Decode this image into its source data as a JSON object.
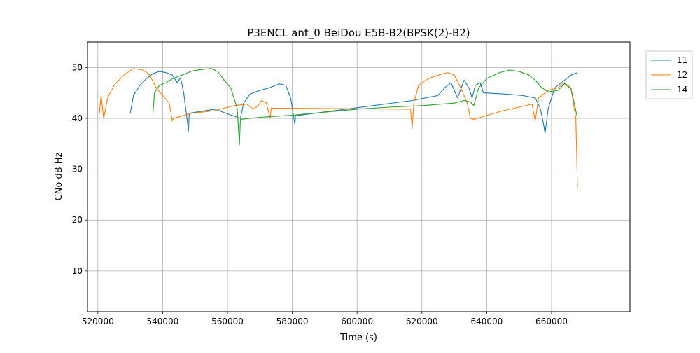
{
  "chart_data": {
    "type": "line",
    "title": "P3ENCL ant_0 BeiDou E5B-B2(BPSK(2)-B2)",
    "xlabel": "Time (s)",
    "ylabel": "CNo dB Hz",
    "xlim": [
      516800,
      684200
    ],
    "ylim": [
      2,
      55
    ],
    "xticks": [
      520000,
      540000,
      560000,
      580000,
      600000,
      620000,
      640000,
      660000
    ],
    "xtick_labels": [
      "520000",
      "540000",
      "560000",
      "580000",
      "600000",
      "620000",
      "640000",
      "660000"
    ],
    "yticks": [
      10,
      20,
      30,
      40,
      50
    ],
    "ytick_labels": [
      "10",
      "20",
      "30",
      "40",
      "50"
    ],
    "grid": true,
    "legend_position": "outside-top-right",
    "series": [
      {
        "name": "11",
        "color": "#1f77b4",
        "points": [
          [
            530000,
            41
          ],
          [
            531000,
            44.5
          ],
          [
            533000,
            46.5
          ],
          [
            535000,
            47.8
          ],
          [
            537000,
            48.8
          ],
          [
            539000,
            49.2
          ],
          [
            541000,
            49
          ],
          [
            543000,
            48.5
          ],
          [
            544500,
            47
          ],
          [
            545500,
            48
          ],
          [
            546500,
            45
          ],
          [
            547500,
            40
          ],
          [
            548000,
            37.5
          ],
          [
            548200,
            41
          ],
          [
            556000,
            41.8
          ],
          [
            564000,
            40
          ],
          [
            565000,
            43
          ],
          [
            567000,
            44.8
          ],
          [
            570000,
            45.5
          ],
          [
            573000,
            46
          ],
          [
            576000,
            46.8
          ],
          [
            578000,
            46.5
          ],
          [
            579500,
            44
          ],
          [
            580500,
            40
          ],
          [
            580800,
            38.8
          ],
          [
            581000,
            40.5
          ],
          [
            617000,
            43.5
          ],
          [
            625000,
            44.5
          ],
          [
            627000,
            46
          ],
          [
            629000,
            47
          ],
          [
            631000,
            44
          ],
          [
            633000,
            47.5
          ],
          [
            634500,
            46
          ],
          [
            635500,
            44
          ],
          [
            636500,
            46.5
          ],
          [
            638000,
            47
          ],
          [
            639000,
            45
          ],
          [
            645000,
            44.8
          ],
          [
            651000,
            44.5
          ],
          [
            655000,
            44
          ],
          [
            656500,
            42
          ],
          [
            657500,
            39
          ],
          [
            658000,
            37
          ],
          [
            659000,
            42
          ],
          [
            661000,
            46
          ],
          [
            664000,
            47.5
          ],
          [
            666000,
            48.5
          ],
          [
            668000,
            49
          ]
        ]
      },
      {
        "name": "12",
        "color": "#ff7f0e",
        "points": [
          [
            520500,
            41
          ],
          [
            521000,
            44.5
          ],
          [
            521800,
            40
          ],
          [
            523000,
            44
          ],
          [
            525000,
            46.5
          ],
          [
            528000,
            48.5
          ],
          [
            531000,
            49.8
          ],
          [
            534000,
            49.5
          ],
          [
            536000,
            48.5
          ],
          [
            538000,
            46
          ],
          [
            540000,
            44.5
          ],
          [
            542000,
            43
          ],
          [
            543000,
            39.5
          ],
          [
            543300,
            40
          ],
          [
            549000,
            41
          ],
          [
            556000,
            41.5
          ],
          [
            562000,
            42.5
          ],
          [
            566000,
            42.8
          ],
          [
            568000,
            41.8
          ],
          [
            569500,
            42.5
          ],
          [
            570500,
            43.5
          ],
          [
            572000,
            43
          ],
          [
            573200,
            40
          ],
          [
            573500,
            42
          ],
          [
            616500,
            41.8
          ],
          [
            617000,
            38
          ],
          [
            617500,
            43
          ],
          [
            619000,
            46.5
          ],
          [
            622000,
            47.8
          ],
          [
            625000,
            48.5
          ],
          [
            628000,
            49
          ],
          [
            630000,
            48.5
          ],
          [
            632000,
            46
          ],
          [
            634000,
            43
          ],
          [
            635000,
            40
          ],
          [
            636000,
            39.8
          ],
          [
            645000,
            41.5
          ],
          [
            654000,
            42.8
          ],
          [
            654500,
            41
          ],
          [
            655000,
            39.5
          ],
          [
            656000,
            44
          ],
          [
            659000,
            45.5
          ],
          [
            662000,
            46
          ],
          [
            664000,
            47
          ],
          [
            666000,
            46
          ],
          [
            667500,
            40
          ],
          [
            668000,
            26.2
          ]
        ]
      },
      {
        "name": "14",
        "color": "#2ca02c",
        "points": [
          [
            537000,
            41
          ],
          [
            537500,
            45
          ],
          [
            539000,
            46.5
          ],
          [
            541000,
            47
          ],
          [
            543000,
            47.8
          ],
          [
            546000,
            48.5
          ],
          [
            549000,
            49.3
          ],
          [
            552000,
            49.6
          ],
          [
            555000,
            49.8
          ],
          [
            557000,
            49.2
          ],
          [
            559000,
            47.5
          ],
          [
            561000,
            46
          ],
          [
            563000,
            42
          ],
          [
            563700,
            34.8
          ],
          [
            564000,
            39.8
          ],
          [
            570000,
            40.2
          ],
          [
            580000,
            40.6
          ],
          [
            590000,
            41.2
          ],
          [
            600000,
            41.8
          ],
          [
            610000,
            42.2
          ],
          [
            620000,
            42.5
          ],
          [
            630000,
            43
          ],
          [
            633000,
            43.5
          ],
          [
            635000,
            43.2
          ],
          [
            636000,
            42.5
          ],
          [
            637500,
            46
          ],
          [
            640000,
            47.8
          ],
          [
            644000,
            49
          ],
          [
            647000,
            49.5
          ],
          [
            650000,
            49.2
          ],
          [
            653000,
            48.5
          ],
          [
            655000,
            47.5
          ],
          [
            657000,
            46
          ],
          [
            659000,
            45.2
          ],
          [
            662000,
            45.5
          ],
          [
            664000,
            46.8
          ],
          [
            666000,
            45.8
          ],
          [
            667000,
            43
          ],
          [
            668000,
            40
          ]
        ]
      }
    ]
  }
}
